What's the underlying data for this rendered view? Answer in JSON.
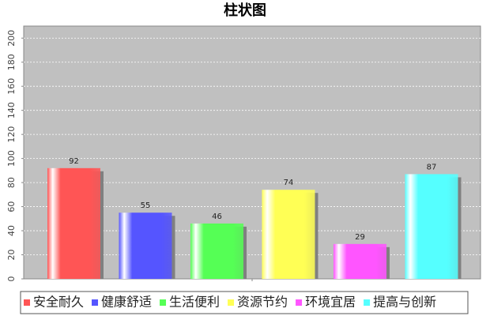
{
  "chart_data": {
    "type": "bar",
    "title": "柱状图",
    "categories": [
      null
    ],
    "series": [
      {
        "name": "安全耐久",
        "color": "#ff5555",
        "values": [
          92
        ]
      },
      {
        "name": "健康舒适",
        "color": "#5555ff",
        "values": [
          55
        ]
      },
      {
        "name": "生活便利",
        "color": "#55ff55",
        "values": [
          46
        ]
      },
      {
        "name": "资源节约",
        "color": "#ffff55",
        "values": [
          74
        ]
      },
      {
        "name": "环境宜居",
        "color": "#ff55ff",
        "values": [
          29
        ]
      },
      {
        "name": "提高与创新",
        "color": "#55ffff",
        "values": [
          87
        ]
      }
    ],
    "ylim": [
      0,
      210
    ],
    "yticks": [
      0,
      20,
      40,
      60,
      80,
      100,
      120,
      140,
      160,
      180,
      200
    ],
    "grid": true
  }
}
